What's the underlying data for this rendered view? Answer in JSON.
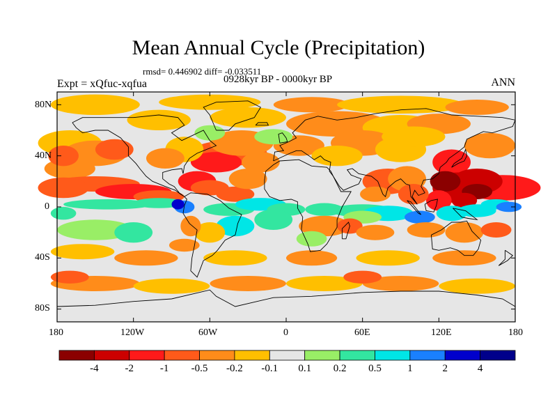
{
  "title": "Mean Annual Cycle (Precipitation)",
  "stats_line": "rmsd= 0.446902 diff= -0.033511",
  "period": "0928kyr BP - 0000kyr BP",
  "experiment": "Expt = xQfuc-xqfua",
  "season": "ANN",
  "lat_labels": [
    "80N",
    "40N",
    "0",
    "40S",
    "80S"
  ],
  "lon_labels": [
    "180",
    "120W",
    "60W",
    "0",
    "60E",
    "120E",
    "180"
  ],
  "map_values": {
    "lat_ticks": [
      80,
      40,
      0,
      -40,
      -80
    ],
    "lon_ticks": [
      -180,
      -120,
      -60,
      0,
      60,
      120,
      180
    ],
    "lat_range": [
      -90,
      90
    ],
    "lon_range": [
      -180,
      180
    ]
  },
  "colorbar": {
    "labels": [
      "-4",
      "-2",
      "-1",
      "-0.5",
      "-0.2",
      "-0.1",
      "0.1",
      "0.2",
      "0.5",
      "1",
      "2",
      "4"
    ],
    "colors": [
      "#8b0000",
      "#cc0000",
      "#ff1a1a",
      "#ff5a1a",
      "#ff8c1a",
      "#ffbf00",
      "#e6e6e6",
      "#99ee66",
      "#33e6a0",
      "#00e6e6",
      "#1a80ff",
      "#0000cc",
      "#00008b"
    ]
  },
  "colors": {
    "land_outline": "#000000",
    "background": "#ffffff",
    "no_change": "#e6e6e6"
  }
}
